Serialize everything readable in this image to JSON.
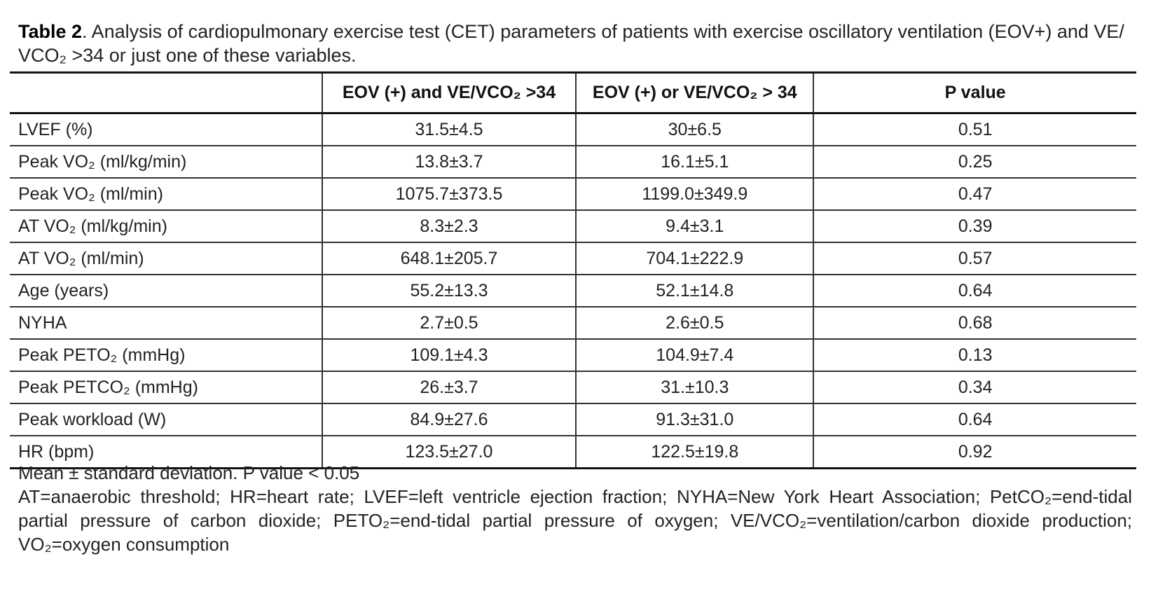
{
  "caption": {
    "label": "Table 2",
    "text": ". Analysis of cardiopulmonary exercise test (CET) parameters of patients with exercise oscillatory ventilation (EOV+) and VE/ VCO₂ >34 or just one of these variables."
  },
  "table": {
    "headers": [
      "",
      "EOV (+) and VE/VCO₂ >34",
      "EOV (+) or VE/VCO₂ > 34",
      "P value"
    ],
    "rows": [
      {
        "label": "LVEF (%)",
        "both": "31.5±4.5",
        "either": "30±6.5",
        "p": "0.51"
      },
      {
        "label": "Peak VO₂ (ml/kg/min)",
        "both": "13.8±3.7",
        "either": "16.1±5.1",
        "p": "0.25"
      },
      {
        "label": "Peak VO₂ (ml/min)",
        "both": "1075.7±373.5",
        "either": "1199.0±349.9",
        "p": "0.47"
      },
      {
        "label": "AT VO₂ (ml/kg/min)",
        "both": "8.3±2.3",
        "either": "9.4±3.1",
        "p": "0.39"
      },
      {
        "label": "AT VO₂ (ml/min)",
        "both": "648.1±205.7",
        "either": "704.1±222.9",
        "p": "0.57"
      },
      {
        "label": "Age (years)",
        "both": "55.2±13.3",
        "either": "52.1±14.8",
        "p": "0.64"
      },
      {
        "label": "NYHA",
        "both": "2.7±0.5",
        "either": "2.6±0.5",
        "p": "0.68"
      },
      {
        "label": "Peak PETO₂ (mmHg)",
        "both": "109.1±4.3",
        "either": "104.9±7.4",
        "p": "0.13"
      },
      {
        "label": "Peak PETCO₂ (mmHg)",
        "both": "26.±3.7",
        "either": "31.±10.3",
        "p": "0.34"
      },
      {
        "label": "Peak workload (W)",
        "both": "84.9±27.6",
        "either": "91.3±31.0",
        "p": "0.64"
      },
      {
        "label": "HR (bpm)",
        "both": "123.5±27.0",
        "either": "122.5±19.8",
        "p": "0.92"
      }
    ]
  },
  "footnotes": {
    "line1": "Mean ± standard deviation. P value < 0.05",
    "line2": "AT=anaerobic threshold; HR=heart rate; LVEF=left ventricle ejection fraction; NYHA=New York Heart Association; PetCO₂=end-tidal partial pressure of carbon dioxide; PETO₂=end-tidal partial pressure of oxygen; VE/VCO₂=ventilation/carbon dioxide production; VO₂=oxygen consumption"
  }
}
